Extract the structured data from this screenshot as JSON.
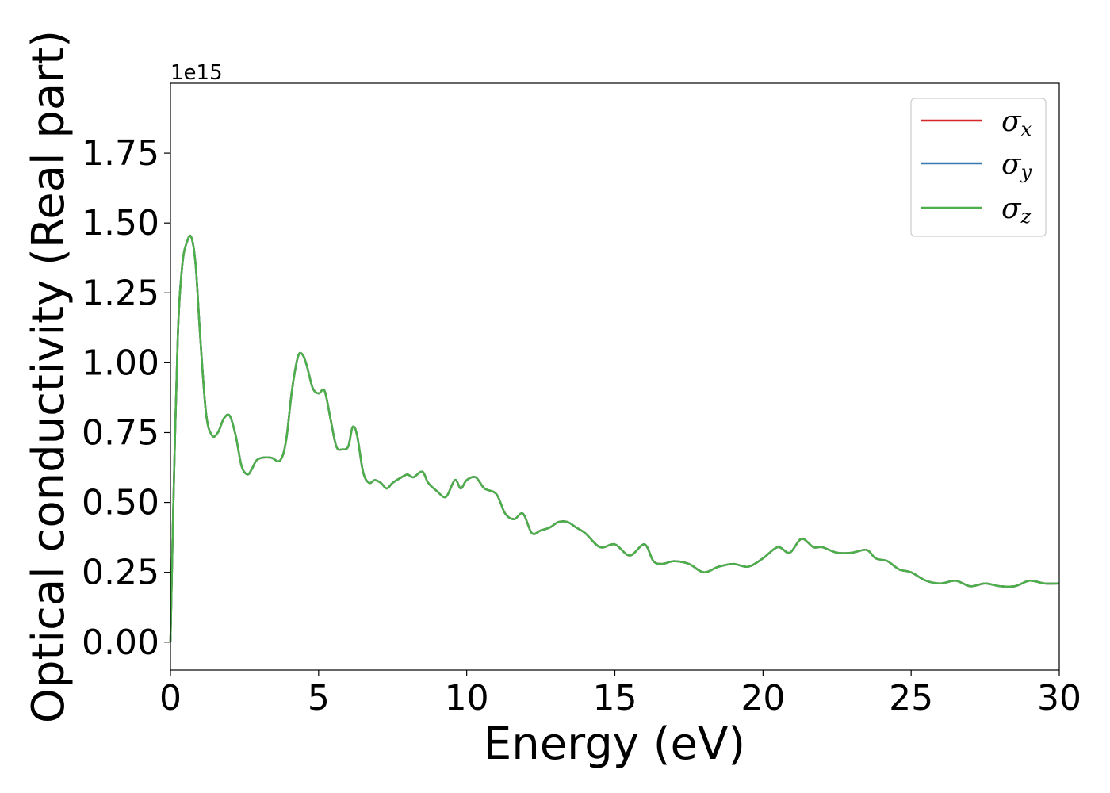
{
  "chart_data": {
    "type": "line",
    "title": "",
    "xlabel": "Energy (eV)",
    "ylabel": "Optical conductivity (Real part)",
    "y_offset_label": "1e15",
    "xlim": [
      0,
      30
    ],
    "ylim": [
      -0.1,
      2.0
    ],
    "x_ticks": [
      0,
      5,
      10,
      15,
      20,
      25,
      30
    ],
    "y_ticks": [
      0.0,
      0.25,
      0.5,
      0.75,
      1.0,
      1.25,
      1.5,
      1.75
    ],
    "x_tick_labels": [
      "0",
      "5",
      "10",
      "15",
      "20",
      "25",
      "30"
    ],
    "y_tick_labels": [
      "0.00",
      "0.25",
      "0.50",
      "0.75",
      "1.00",
      "1.25",
      "1.50",
      "1.75"
    ],
    "grid": false,
    "legend_position": "top-right",
    "colors": {
      "sigma_x": "#d62728",
      "sigma_y": "#3a78b0",
      "sigma_z": "#4daf4a"
    },
    "series_x": [
      0,
      0.1,
      0.25,
      0.4,
      0.55,
      0.7,
      0.85,
      1.0,
      1.2,
      1.4,
      1.6,
      1.8,
      2.0,
      2.2,
      2.4,
      2.6,
      2.75,
      2.9,
      3.1,
      3.4,
      3.7,
      3.9,
      4.1,
      4.3,
      4.45,
      4.6,
      4.8,
      5.0,
      5.2,
      5.4,
      5.6,
      5.8,
      6.0,
      6.15,
      6.3,
      6.5,
      6.7,
      6.9,
      7.1,
      7.3,
      7.5,
      7.8,
      8.0,
      8.2,
      8.5,
      8.7,
      9.0,
      9.3,
      9.6,
      9.8,
      10.0,
      10.3,
      10.6,
      11.0,
      11.3,
      11.6,
      11.9,
      12.2,
      12.5,
      12.8,
      13.1,
      13.4,
      13.7,
      14.0,
      14.5,
      15.0,
      15.5,
      16.0,
      16.3,
      16.6,
      17.0,
      17.5,
      18.0,
      18.5,
      19.0,
      19.5,
      20.0,
      20.5,
      20.9,
      21.3,
      21.7,
      22.0,
      22.5,
      23.0,
      23.5,
      23.8,
      24.2,
      24.6,
      25.0,
      25.5,
      26.0,
      26.5,
      27.0,
      27.5,
      28.0,
      28.5,
      29.0,
      29.5,
      30.0
    ],
    "series": [
      {
        "name": "σx",
        "name_main": "σ",
        "name_sub": "x",
        "values": [
          0.0,
          0.5,
          1.1,
          1.35,
          1.43,
          1.45,
          1.35,
          1.1,
          0.82,
          0.74,
          0.75,
          0.8,
          0.81,
          0.74,
          0.63,
          0.6,
          0.62,
          0.65,
          0.66,
          0.66,
          0.65,
          0.72,
          0.9,
          1.02,
          1.03,
          0.99,
          0.91,
          0.89,
          0.9,
          0.8,
          0.7,
          0.69,
          0.7,
          0.77,
          0.74,
          0.61,
          0.57,
          0.58,
          0.57,
          0.55,
          0.57,
          0.59,
          0.6,
          0.59,
          0.61,
          0.57,
          0.54,
          0.52,
          0.58,
          0.55,
          0.58,
          0.59,
          0.55,
          0.53,
          0.46,
          0.44,
          0.46,
          0.39,
          0.4,
          0.41,
          0.43,
          0.43,
          0.41,
          0.39,
          0.34,
          0.35,
          0.31,
          0.35,
          0.29,
          0.28,
          0.29,
          0.28,
          0.25,
          0.27,
          0.28,
          0.27,
          0.3,
          0.34,
          0.32,
          0.37,
          0.34,
          0.34,
          0.32,
          0.32,
          0.33,
          0.3,
          0.29,
          0.26,
          0.25,
          0.22,
          0.21,
          0.22,
          0.2,
          0.21,
          0.2,
          0.2,
          0.22,
          0.21,
          0.21
        ]
      },
      {
        "name": "σy",
        "name_main": "σ",
        "name_sub": "y",
        "values": [
          0.0,
          0.5,
          1.1,
          1.35,
          1.43,
          1.45,
          1.35,
          1.1,
          0.82,
          0.74,
          0.75,
          0.8,
          0.81,
          0.74,
          0.63,
          0.6,
          0.62,
          0.65,
          0.66,
          0.66,
          0.65,
          0.72,
          0.9,
          1.02,
          1.03,
          0.99,
          0.91,
          0.89,
          0.9,
          0.8,
          0.7,
          0.69,
          0.7,
          0.77,
          0.74,
          0.61,
          0.57,
          0.58,
          0.57,
          0.55,
          0.57,
          0.59,
          0.6,
          0.59,
          0.61,
          0.57,
          0.54,
          0.52,
          0.58,
          0.55,
          0.58,
          0.59,
          0.55,
          0.53,
          0.46,
          0.44,
          0.46,
          0.39,
          0.4,
          0.41,
          0.43,
          0.43,
          0.41,
          0.39,
          0.34,
          0.35,
          0.31,
          0.35,
          0.29,
          0.28,
          0.29,
          0.28,
          0.25,
          0.27,
          0.28,
          0.27,
          0.3,
          0.34,
          0.32,
          0.37,
          0.34,
          0.34,
          0.32,
          0.32,
          0.33,
          0.3,
          0.29,
          0.26,
          0.25,
          0.22,
          0.21,
          0.22,
          0.2,
          0.21,
          0.2,
          0.2,
          0.22,
          0.21,
          0.21
        ]
      },
      {
        "name": "σz",
        "name_main": "σ",
        "name_sub": "z",
        "values": [
          0.0,
          0.5,
          1.1,
          1.35,
          1.43,
          1.45,
          1.35,
          1.1,
          0.82,
          0.74,
          0.75,
          0.8,
          0.81,
          0.74,
          0.63,
          0.6,
          0.62,
          0.65,
          0.66,
          0.66,
          0.65,
          0.72,
          0.9,
          1.02,
          1.03,
          0.99,
          0.91,
          0.89,
          0.9,
          0.8,
          0.7,
          0.69,
          0.7,
          0.77,
          0.74,
          0.61,
          0.57,
          0.58,
          0.57,
          0.55,
          0.57,
          0.59,
          0.6,
          0.59,
          0.61,
          0.57,
          0.54,
          0.52,
          0.58,
          0.55,
          0.58,
          0.59,
          0.55,
          0.53,
          0.46,
          0.44,
          0.46,
          0.39,
          0.4,
          0.41,
          0.43,
          0.43,
          0.41,
          0.39,
          0.34,
          0.35,
          0.31,
          0.35,
          0.29,
          0.28,
          0.29,
          0.28,
          0.25,
          0.27,
          0.28,
          0.27,
          0.3,
          0.34,
          0.32,
          0.37,
          0.34,
          0.34,
          0.32,
          0.32,
          0.33,
          0.3,
          0.29,
          0.26,
          0.25,
          0.22,
          0.21,
          0.22,
          0.2,
          0.21,
          0.2,
          0.2,
          0.22,
          0.21,
          0.21
        ]
      }
    ]
  }
}
